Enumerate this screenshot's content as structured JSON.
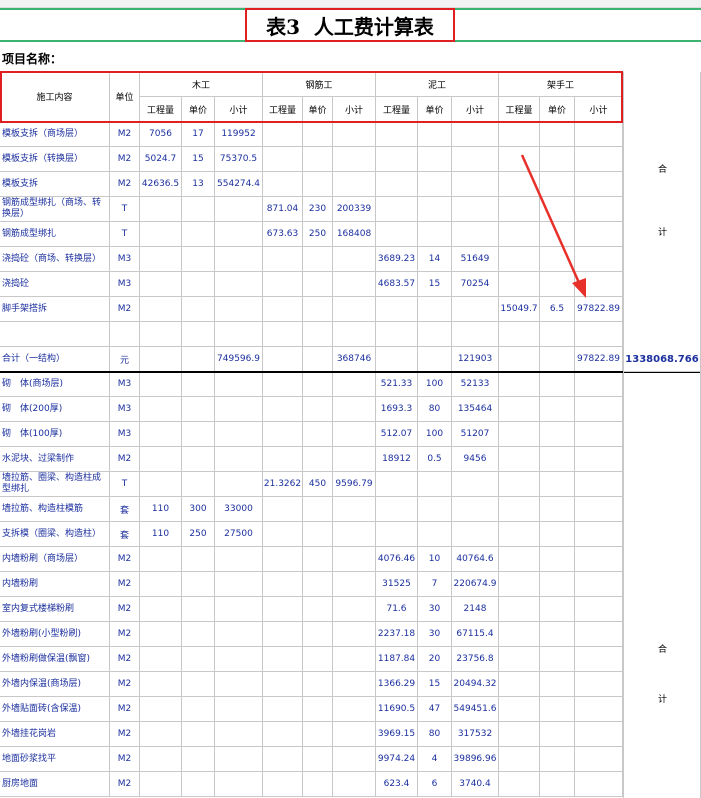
{
  "title": "表3  人工费计算表",
  "project_label": "项目名称：",
  "header": {
    "item": "施工内容",
    "unit": "单位",
    "groups": [
      {
        "name": "木工",
        "sub": [
          "工程量",
          "单价",
          "小计"
        ]
      },
      {
        "name": "钢筋工",
        "sub": [
          "工程量",
          "单价",
          "小计"
        ]
      },
      {
        "name": "泥工",
        "sub": [
          "工程量",
          "单价",
          "小计"
        ]
      },
      {
        "name": "架手工",
        "sub": [
          "工程量",
          "单价",
          "小计"
        ]
      }
    ]
  },
  "rows": [
    [
      "模板支拆（商场层）",
      "M2",
      "7056",
      "17",
      "119952"
    ],
    [
      "模板支拆（转换层）",
      "M2",
      "5024.7",
      "15",
      "75370.5"
    ],
    [
      "模板支拆",
      "M2",
      "42636.5",
      "13",
      "554274.4"
    ],
    [
      "钢筋成型绑扎（商场、转换层）",
      "T",
      null,
      null,
      null,
      "871.04",
      "230",
      "200339"
    ],
    [
      "钢筋成型绑扎",
      "T",
      null,
      null,
      null,
      "673.63",
      "250",
      "168408"
    ],
    [
      "浇捣砼（商场、转换层）",
      "M3",
      null,
      null,
      null,
      null,
      null,
      null,
      "3689.23",
      "14",
      "51649"
    ],
    [
      "浇捣砼",
      "M3",
      null,
      null,
      null,
      null,
      null,
      null,
      "4683.57",
      "15",
      "70254"
    ],
    [
      "脚手架搭拆",
      "M2",
      null,
      null,
      null,
      null,
      null,
      null,
      null,
      null,
      null,
      "15049.7",
      "6.5",
      "97822.89"
    ],
    [],
    [
      "合计（一结构）",
      "元",
      null,
      null,
      "749596.9",
      null,
      null,
      "368746",
      null,
      null,
      "121903",
      null,
      null,
      "97822.89"
    ],
    [
      "砌　体(商场层)",
      "M3",
      null,
      null,
      null,
      null,
      null,
      null,
      "521.33",
      "100",
      "52133"
    ],
    [
      "砌　体(200厚)",
      "M3",
      null,
      null,
      null,
      null,
      null,
      null,
      "1693.3",
      "80",
      "135464"
    ],
    [
      "砌　体(100厚)",
      "M3",
      null,
      null,
      null,
      null,
      null,
      null,
      "512.07",
      "100",
      "51207"
    ],
    [
      "水泥块、过梁制作",
      "M2",
      null,
      null,
      null,
      null,
      null,
      null,
      "18912",
      "0.5",
      "9456"
    ],
    [
      "墙拉筋、圈梁、构造柱成型绑扎",
      "T",
      null,
      null,
      null,
      "21.3262",
      "450",
      "9596.79"
    ],
    [
      "墙拉筋、构造柱模筋",
      "套",
      "110",
      "300",
      "33000"
    ],
    [
      "支拆模（圈梁、构造柱）",
      "套",
      "110",
      "250",
      "27500"
    ],
    [
      "内墙粉刷（商场层）",
      "M2",
      null,
      null,
      null,
      null,
      null,
      null,
      "4076.46",
      "10",
      "40764.6"
    ],
    [
      "内墙粉刷",
      "M2",
      null,
      null,
      null,
      null,
      null,
      null,
      "31525",
      "7",
      "220674.9"
    ],
    [
      "室内复式楼梯粉刷",
      "M2",
      null,
      null,
      null,
      null,
      null,
      null,
      "71.6",
      "30",
      "2148"
    ],
    [
      "外墙粉刷(小型粉刷)",
      "M2",
      null,
      null,
      null,
      null,
      null,
      null,
      "2237.18",
      "30",
      "67115.4"
    ],
    [
      "外墙粉刷做保温(飘窗)",
      "M2",
      null,
      null,
      null,
      null,
      null,
      null,
      "1187.84",
      "20",
      "23756.8"
    ],
    [
      "外墙内保温(商场层)",
      "M2",
      null,
      null,
      null,
      null,
      null,
      null,
      "1366.29",
      "15",
      "20494.32"
    ],
    [
      "外墙贴面砖(含保温)",
      "M2",
      null,
      null,
      null,
      null,
      null,
      null,
      "11690.5",
      "47",
      "549451.6"
    ],
    [
      "外墙挂花岗岩",
      "M2",
      null,
      null,
      null,
      null,
      null,
      null,
      "3969.15",
      "80",
      "317532"
    ],
    [
      "地面砂浆找平",
      "M2",
      null,
      null,
      null,
      null,
      null,
      null,
      "9974.24",
      "4",
      "39896.96"
    ],
    [
      "厨房地面",
      "M2",
      null,
      null,
      null,
      null,
      null,
      null,
      "623.4",
      "6",
      "3740.4"
    ]
  ],
  "side": {
    "total": "1338068.766",
    "top": [
      "合",
      "计"
    ],
    "bottom": [
      "合",
      "计"
    ]
  }
}
